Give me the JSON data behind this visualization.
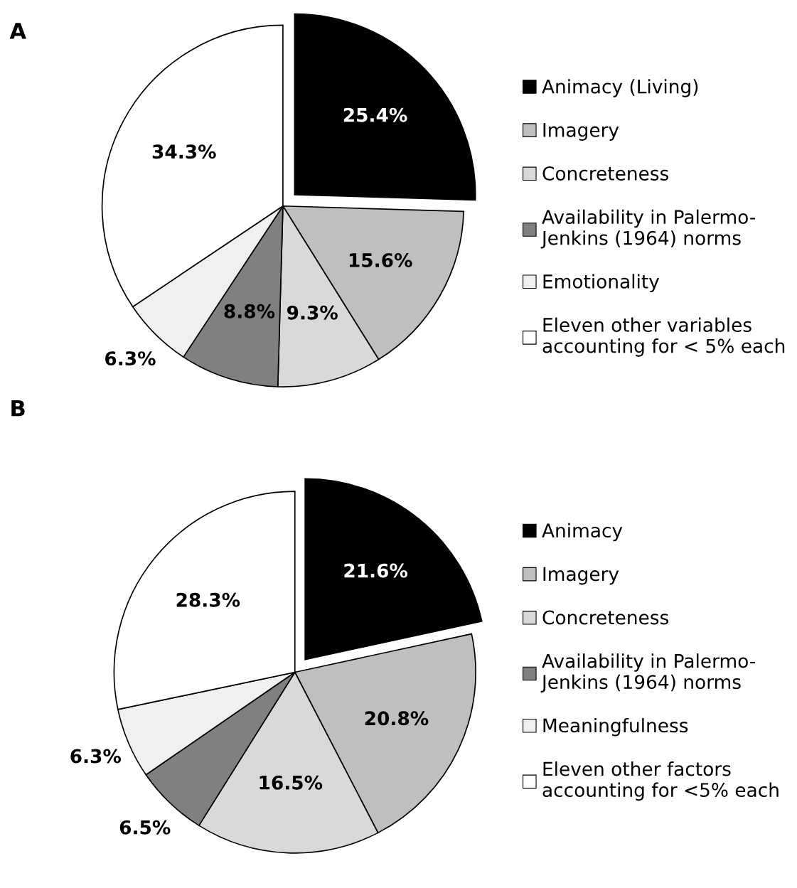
{
  "chart_data": [
    {
      "type": "pie",
      "title": "A",
      "categories": [
        "Animacy (Living)",
        "Imagery",
        "Concreteness",
        "Availability in Palermo-\nJenkins (1964) norms",
        "Emotionality",
        "Eleven other variables\naccounting for < 5% each"
      ],
      "values": [
        25.4,
        15.6,
        9.3,
        8.8,
        6.3,
        34.3
      ],
      "colors": [
        "#000000",
        "#bfbfbf",
        "#d9d9d9",
        "#808080",
        "#f0f0f0",
        "#ffffff"
      ],
      "value_labels": [
        "25.4%",
        "15.6%",
        "9.3%",
        "8.8%",
        "6.3%",
        "34.3%"
      ],
      "legend": "right"
    },
    {
      "type": "pie",
      "title": "B",
      "categories": [
        "Animacy",
        "Imagery",
        "Concreteness",
        "Availability in Palermo-\nJenkins (1964) norms",
        "Meaningfulness",
        "Eleven other factors\naccounting for <5% each"
      ],
      "values": [
        21.6,
        20.8,
        16.5,
        6.5,
        6.3,
        28.3
      ],
      "colors": [
        "#000000",
        "#bfbfbf",
        "#d9d9d9",
        "#808080",
        "#f0f0f0",
        "#ffffff"
      ],
      "value_labels": [
        "21.6%",
        "20.8%",
        "16.5%",
        "6.5%",
        "6.3%",
        "28.3%"
      ],
      "legend": "right"
    }
  ]
}
